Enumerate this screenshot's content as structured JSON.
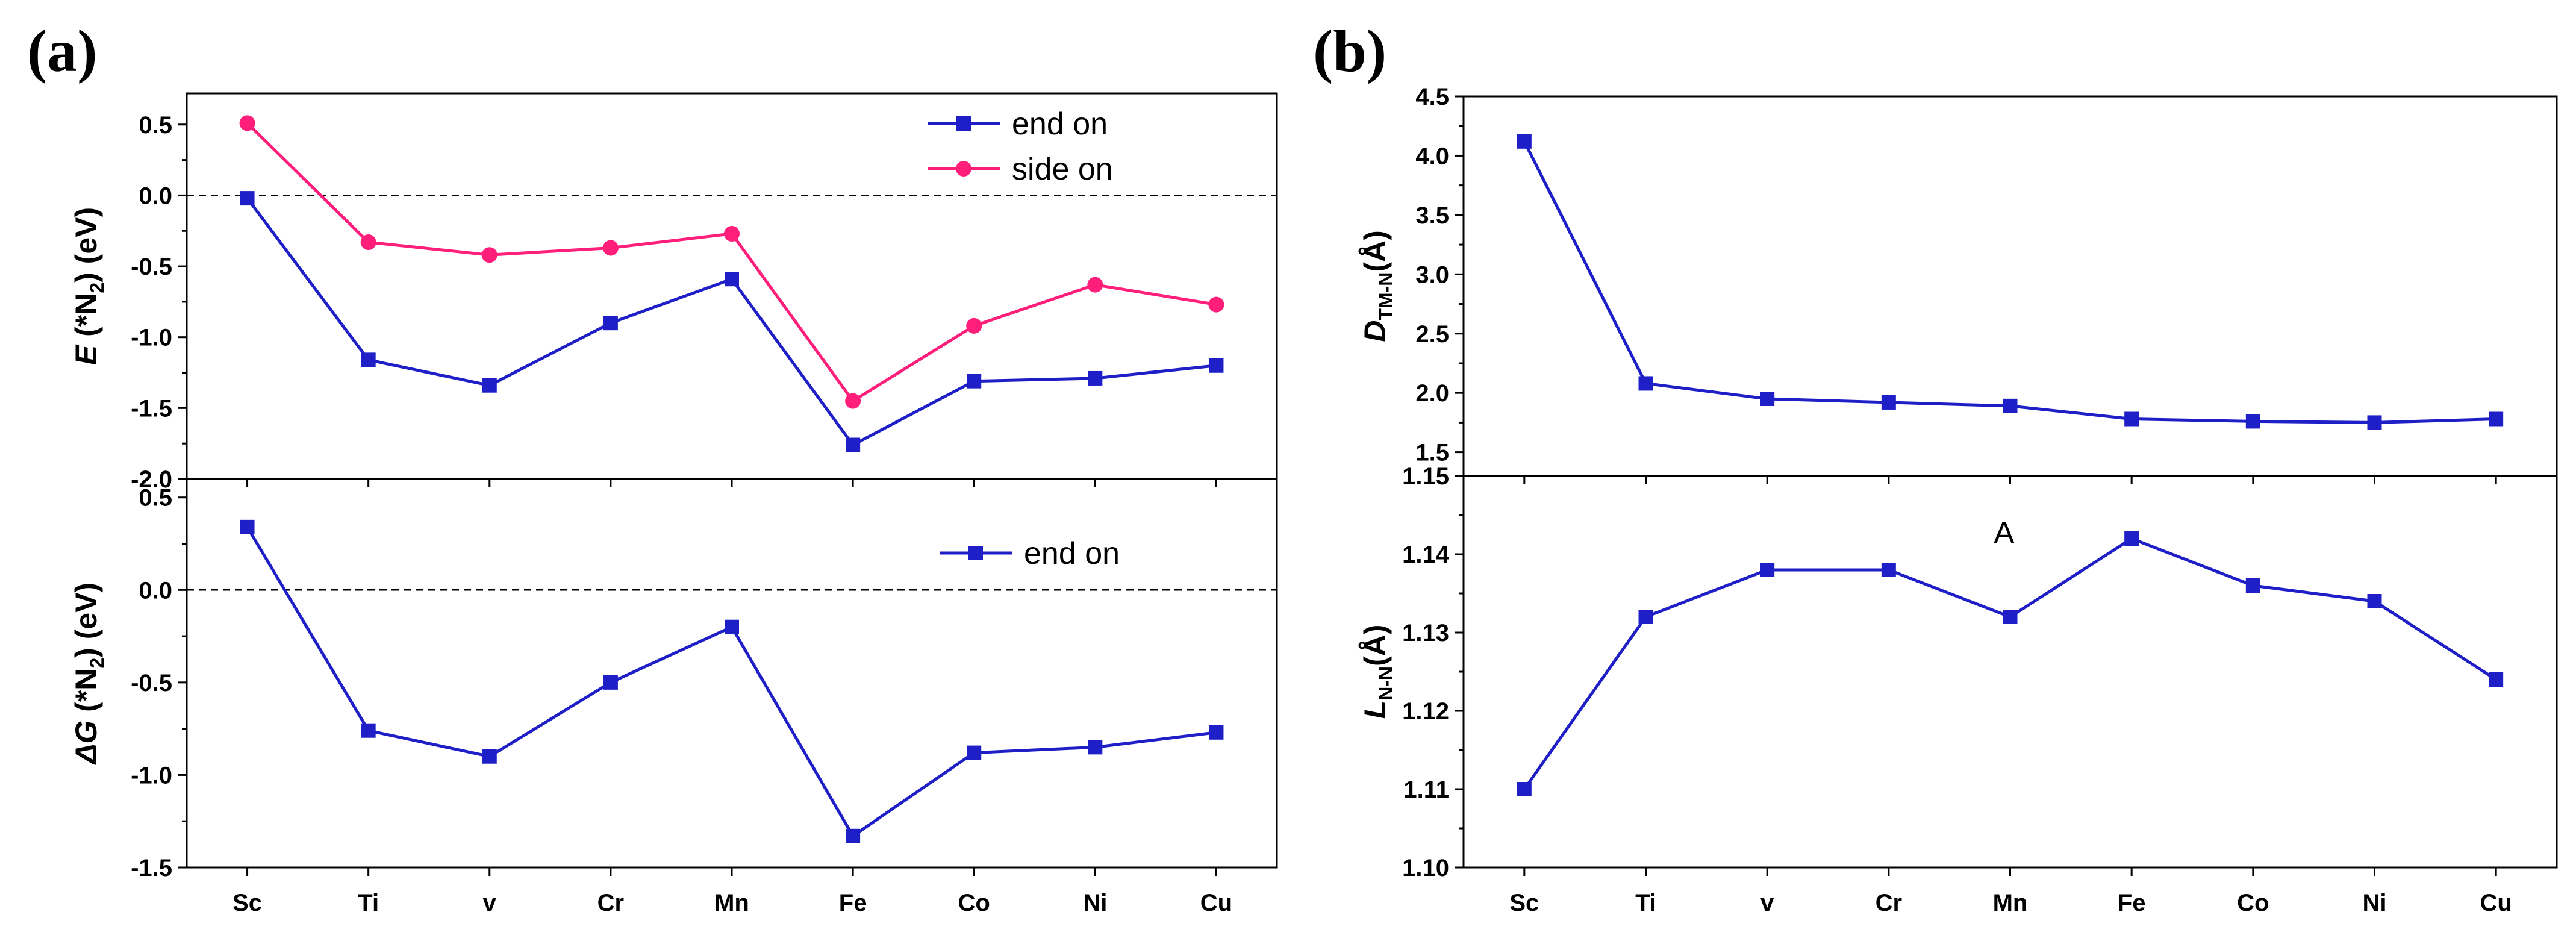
{
  "panel_a_label": "(a)",
  "panel_b_label": "(b)",
  "annotation": "A",
  "colors": {
    "series_blue": "#1f1fc8",
    "series_pink": "#ff1f7a"
  },
  "chart_data": [
    {
      "id": "a-top",
      "type": "line",
      "ylabel": "E (*N2) (eV)",
      "ylabel_main": "E",
      "ylabel_rest": " (*N",
      "ylabel_sub": "2",
      "ylabel_end": ") (eV)",
      "categories": [
        "Sc",
        "Ti",
        "v",
        "Cr",
        "Mn",
        "Fe",
        "Co",
        "Ni",
        "Cu"
      ],
      "ylim": [
        -2.0,
        0.72
      ],
      "yticks": [
        -2.0,
        -1.5,
        -1.0,
        -0.5,
        0.0,
        0.5
      ],
      "ytick_labels": [
        "-2.0",
        "-1.5",
        "-1.0",
        "-0.5",
        "0.0",
        "0.5"
      ],
      "reference_line": 0.0,
      "legend_position": "top-right",
      "series": [
        {
          "name": "end on",
          "marker": "square",
          "color": "#1f1fc8",
          "values": [
            -0.02,
            -1.16,
            -1.34,
            -0.9,
            -0.59,
            -1.76,
            -1.31,
            -1.29,
            -1.2
          ]
        },
        {
          "name": "side on",
          "marker": "circle",
          "color": "#ff1f7a",
          "values": [
            0.51,
            -0.33,
            -0.42,
            -0.37,
            -0.27,
            -1.45,
            -0.92,
            -0.63,
            -0.77
          ]
        }
      ]
    },
    {
      "id": "a-bottom",
      "type": "line",
      "ylabel": "ΔG (*N2) (eV)",
      "ylabel_main": "ΔG",
      "ylabel_rest": " (*N",
      "ylabel_sub": "2",
      "ylabel_end": ") (eV)",
      "categories": [
        "Sc",
        "Ti",
        "v",
        "Cr",
        "Mn",
        "Fe",
        "Co",
        "Ni",
        "Cu"
      ],
      "xtick_labels": [
        "Sc",
        "Ti",
        "v",
        "Cr",
        "Mn",
        "Fe",
        "Co",
        "Ni",
        "Cu"
      ],
      "ylim": [
        -1.5,
        0.6
      ],
      "yticks": [
        -1.5,
        -1.0,
        -0.5,
        0.0,
        0.5
      ],
      "ytick_labels": [
        "-1.5",
        "-1.0",
        "-0.5",
        "0.0",
        "0.5"
      ],
      "reference_line": 0.0,
      "legend_position": "top-right",
      "series": [
        {
          "name": "end on",
          "marker": "square",
          "color": "#1f1fc8",
          "values": [
            0.34,
            -0.76,
            -0.9,
            -0.5,
            -0.2,
            -1.33,
            -0.88,
            -0.85,
            -0.77
          ]
        }
      ]
    },
    {
      "id": "b-top",
      "type": "line",
      "ylabel": "DTM-N(Å)",
      "ylabel_main": "D",
      "ylabel_sub": "TM-N",
      "ylabel_end": "(Å)",
      "categories": [
        "Sc",
        "Ti",
        "v",
        "Cr",
        "Mn",
        "Fe",
        "Co",
        "Ni",
        "Cu"
      ],
      "ylim": [
        1.3,
        4.5
      ],
      "yticks": [
        1.5,
        2.0,
        2.5,
        3.0,
        3.5,
        4.0,
        4.5
      ],
      "ytick_labels": [
        "1.5",
        "2.0",
        "2.5",
        "3.0",
        "3.5",
        "4.0",
        "4.5"
      ],
      "series": [
        {
          "name": "D TM-N",
          "marker": "square",
          "color": "#1f1fc8",
          "values": [
            4.12,
            2.08,
            1.95,
            1.92,
            1.89,
            1.78,
            1.76,
            1.75,
            1.78
          ]
        }
      ]
    },
    {
      "id": "b-bottom",
      "type": "line",
      "ylabel": "LN-N(Å)",
      "ylabel_main": "L",
      "ylabel_sub": "N-N",
      "ylabel_end": "(Å)",
      "categories": [
        "Sc",
        "Ti",
        "v",
        "Cr",
        "Mn",
        "Fe",
        "Co",
        "Ni",
        "Cu"
      ],
      "xtick_labels": [
        "Sc",
        "Ti",
        "v",
        "Cr",
        "Mn",
        "Fe",
        "Co",
        "Ni",
        "Cu"
      ],
      "ylim": [
        1.1,
        1.15
      ],
      "yticks": [
        1.1,
        1.11,
        1.12,
        1.13,
        1.14,
        1.15
      ],
      "ytick_labels": [
        "1.10",
        "1.11",
        "1.12",
        "1.13",
        "1.14",
        "1.15"
      ],
      "series": [
        {
          "name": "L N-N",
          "marker": "square",
          "color": "#1f1fc8",
          "values": [
            1.11,
            1.132,
            1.138,
            1.138,
            1.132,
            1.142,
            1.136,
            1.134,
            1.124
          ]
        }
      ]
    }
  ]
}
